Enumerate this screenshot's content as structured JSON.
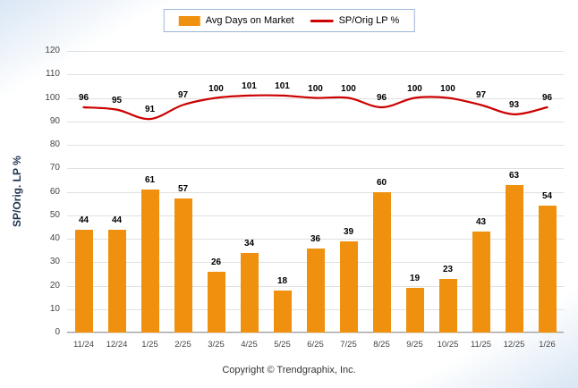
{
  "legend": {
    "bar_label": "Avg Days on Market",
    "line_label": "SP/Orig LP %"
  },
  "y_axis_title": "SP/Orig. LP %",
  "footer": {
    "copyright": "Copyright © Trendgraphix, Inc."
  },
  "colors": {
    "bar": "#F0900F",
    "line": "#CC0000"
  },
  "chart_data": {
    "type": "bar+line",
    "title": "",
    "xlabel": "",
    "ylabel": "SP/Orig. LP %",
    "ylim": [
      0,
      120
    ],
    "ytick_step": 10,
    "grid": true,
    "legend_position": "top",
    "categories": [
      "11/24",
      "12/24",
      "1/25",
      "2/25",
      "3/25",
      "4/25",
      "5/25",
      "6/25",
      "7/25",
      "8/25",
      "9/25",
      "10/25",
      "11/25",
      "12/25",
      "1/26"
    ],
    "series": [
      {
        "name": "Avg Days on Market",
        "type": "bar",
        "values": [
          44,
          44,
          61,
          57,
          26,
          34,
          18,
          36,
          39,
          60,
          19,
          23,
          43,
          63,
          54
        ]
      },
      {
        "name": "SP/Orig LP %",
        "type": "line",
        "values": [
          96,
          95,
          91,
          97,
          100,
          101,
          101,
          100,
          100,
          96,
          100,
          100,
          97,
          93,
          96
        ]
      }
    ]
  }
}
